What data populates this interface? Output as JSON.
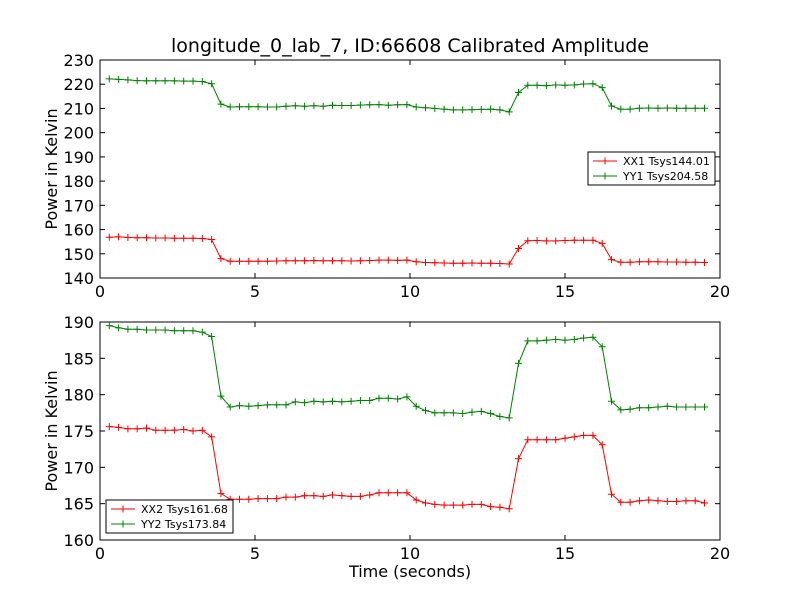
{
  "figure_title": "longitude_0_lab_7, ID:66608 Calibrated Amplitude",
  "colors": {
    "red": "#ff0000",
    "green": "#008000"
  },
  "chart_data": [
    {
      "type": "line",
      "ylabel": "Power in Kelvin",
      "xlabel": "",
      "xlim": [
        0,
        20
      ],
      "ylim": [
        140,
        230
      ],
      "xticks": [
        0,
        5,
        10,
        15,
        20
      ],
      "yticks": [
        140,
        150,
        160,
        170,
        180,
        190,
        200,
        210,
        220,
        230
      ],
      "grid": false,
      "legend_position": "center-right",
      "x": [
        0.3,
        0.6,
        0.9,
        1.2,
        1.5,
        1.8,
        2.1,
        2.4,
        2.7,
        3.0,
        3.3,
        3.6,
        3.9,
        4.2,
        4.5,
        4.8,
        5.1,
        5.4,
        5.7,
        6.0,
        6.3,
        6.6,
        6.9,
        7.2,
        7.5,
        7.8,
        8.1,
        8.4,
        8.7,
        9.0,
        9.3,
        9.6,
        9.9,
        10.2,
        10.5,
        10.8,
        11.1,
        11.4,
        11.7,
        12.0,
        12.3,
        12.6,
        12.9,
        13.2,
        13.5,
        13.8,
        14.1,
        14.4,
        14.7,
        15.0,
        15.3,
        15.6,
        15.9,
        16.2,
        16.5,
        16.8,
        17.1,
        17.4,
        17.7,
        18.0,
        18.3,
        18.6,
        18.9,
        19.2,
        19.5
      ],
      "series": [
        {
          "name": "XX1 Tsys144.01",
          "color": "#ff0000",
          "values": [
            156.8,
            157.0,
            156.7,
            156.6,
            156.6,
            156.5,
            156.5,
            156.4,
            156.4,
            156.4,
            156.3,
            155.9,
            148.0,
            146.9,
            146.9,
            146.9,
            146.9,
            146.9,
            147.0,
            147.1,
            147.1,
            147.1,
            147.2,
            147.1,
            147.1,
            147.1,
            147.0,
            147.1,
            147.2,
            147.4,
            147.4,
            147.3,
            147.4,
            146.7,
            146.4,
            146.3,
            146.2,
            146.1,
            146.1,
            146.2,
            146.1,
            146.1,
            146.0,
            145.8,
            152.2,
            155.4,
            155.5,
            155.3,
            155.3,
            155.5,
            155.6,
            155.6,
            155.6,
            154.3,
            147.6,
            146.5,
            146.5,
            146.7,
            146.7,
            146.7,
            146.6,
            146.6,
            146.5,
            146.5,
            146.4
          ]
        },
        {
          "name": "YY1 Tsys204.58",
          "color": "#008000",
          "values": [
            222.2,
            222.0,
            221.8,
            221.5,
            221.4,
            221.4,
            221.4,
            221.4,
            221.3,
            221.3,
            221.1,
            220.2,
            211.8,
            210.6,
            210.7,
            210.7,
            210.7,
            210.6,
            210.6,
            210.9,
            211.1,
            210.9,
            211.1,
            210.9,
            211.3,
            211.2,
            211.2,
            211.4,
            211.5,
            211.6,
            211.3,
            211.5,
            211.6,
            210.6,
            210.3,
            210.0,
            209.7,
            209.4,
            209.4,
            209.5,
            209.6,
            209.7,
            209.4,
            208.6,
            216.6,
            219.6,
            219.6,
            219.4,
            219.7,
            219.6,
            219.7,
            220.1,
            220.2,
            218.6,
            211.0,
            209.7,
            209.7,
            210.1,
            210.2,
            210.1,
            210.2,
            210.1,
            210.1,
            210.1,
            210.1
          ]
        }
      ]
    },
    {
      "type": "line",
      "ylabel": "Power in Kelvin",
      "xlabel": "Time (seconds)",
      "xlim": [
        0,
        20
      ],
      "ylim": [
        160,
        190
      ],
      "xticks": [
        0,
        5,
        10,
        15,
        20
      ],
      "yticks": [
        160,
        165,
        170,
        175,
        180,
        185,
        190
      ],
      "grid": false,
      "legend_position": "lower-left",
      "x": [
        0.3,
        0.6,
        0.9,
        1.2,
        1.5,
        1.8,
        2.1,
        2.4,
        2.7,
        3.0,
        3.3,
        3.6,
        3.9,
        4.2,
        4.5,
        4.8,
        5.1,
        5.4,
        5.7,
        6.0,
        6.3,
        6.6,
        6.9,
        7.2,
        7.5,
        7.8,
        8.1,
        8.4,
        8.7,
        9.0,
        9.3,
        9.6,
        9.9,
        10.2,
        10.5,
        10.8,
        11.1,
        11.4,
        11.7,
        12.0,
        12.3,
        12.6,
        12.9,
        13.2,
        13.5,
        13.8,
        14.1,
        14.4,
        14.7,
        15.0,
        15.3,
        15.6,
        15.9,
        16.2,
        16.5,
        16.8,
        17.1,
        17.4,
        17.7,
        18.0,
        18.3,
        18.6,
        18.9,
        19.2,
        19.5
      ],
      "series": [
        {
          "name": "XX2 Tsys161.68",
          "color": "#ff0000",
          "values": [
            175.6,
            175.5,
            175.3,
            175.3,
            175.4,
            175.1,
            175.1,
            175.1,
            175.2,
            175.0,
            175.1,
            174.2,
            166.4,
            165.6,
            165.6,
            165.6,
            165.7,
            165.7,
            165.7,
            165.9,
            165.9,
            166.1,
            166.1,
            166.0,
            166.2,
            166.1,
            166.0,
            166.0,
            166.2,
            166.5,
            166.5,
            166.5,
            166.5,
            165.5,
            165.1,
            164.9,
            164.8,
            164.8,
            164.8,
            164.9,
            164.9,
            164.6,
            164.5,
            164.3,
            171.2,
            173.8,
            173.8,
            173.8,
            173.8,
            174.0,
            174.2,
            174.4,
            174.4,
            173.1,
            166.3,
            165.2,
            165.2,
            165.4,
            165.5,
            165.4,
            165.3,
            165.3,
            165.4,
            165.4,
            165.1
          ]
        },
        {
          "name": "YY2 Tsys173.84",
          "color": "#008000",
          "values": [
            189.5,
            189.2,
            189.0,
            189.0,
            188.9,
            188.9,
            188.9,
            188.8,
            188.8,
            188.8,
            188.6,
            188.0,
            179.8,
            178.3,
            178.5,
            178.4,
            178.5,
            178.6,
            178.6,
            178.6,
            179.0,
            178.9,
            179.1,
            179.0,
            179.1,
            179.0,
            179.1,
            179.2,
            179.2,
            179.5,
            179.5,
            179.4,
            179.7,
            178.4,
            177.8,
            177.5,
            177.5,
            177.5,
            177.4,
            177.6,
            177.7,
            177.4,
            177.0,
            176.8,
            184.3,
            187.4,
            187.4,
            187.5,
            187.6,
            187.5,
            187.6,
            187.8,
            187.9,
            186.6,
            179.1,
            177.9,
            178.0,
            178.2,
            178.2,
            178.3,
            178.4,
            178.3,
            178.3,
            178.3,
            178.3
          ]
        }
      ]
    }
  ]
}
